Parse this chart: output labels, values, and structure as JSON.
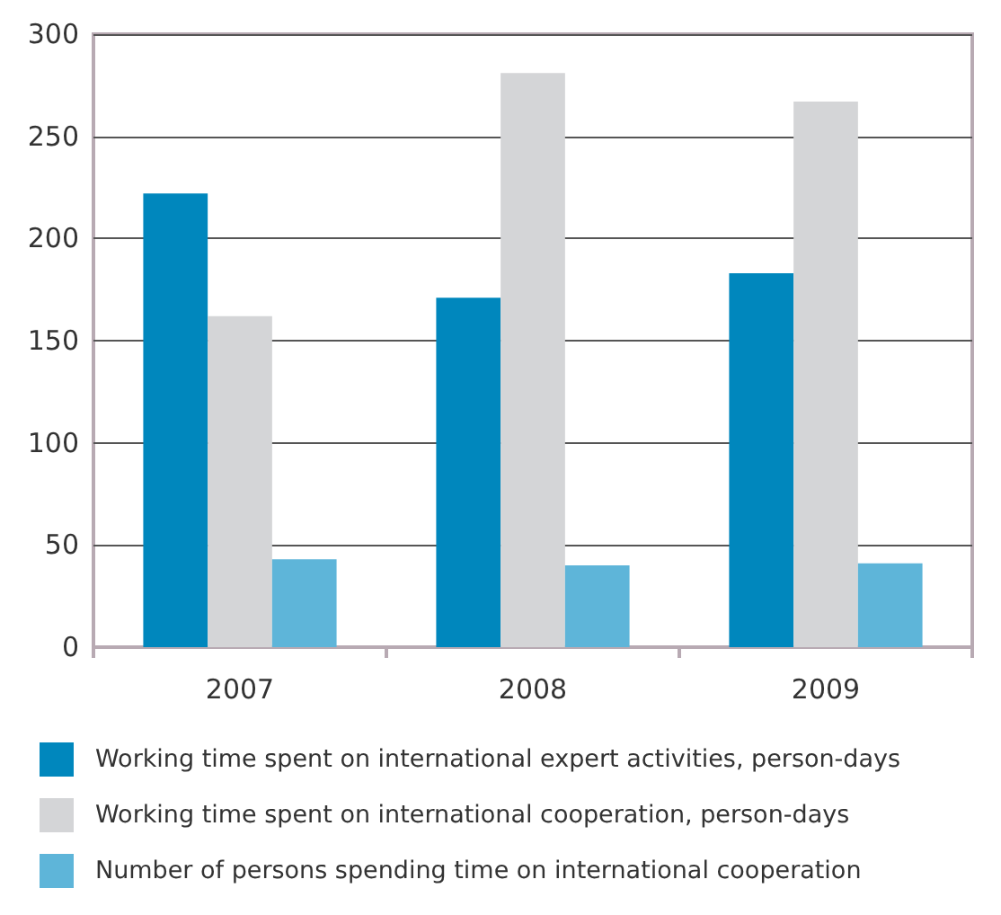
{
  "chart_data": {
    "type": "bar",
    "categories": [
      "2007",
      "2008",
      "2009"
    ],
    "series": [
      {
        "name": "Working time spent on international expert activities, person-days",
        "color": "#0087bd",
        "values": [
          222,
          171,
          183
        ]
      },
      {
        "name": "Working time spent on international cooperation, person-days",
        "color": "#d4d5d7",
        "values": [
          162,
          281,
          267
        ]
      },
      {
        "name": "Number of persons spending time on international cooperation",
        "color": "#5eb5d9",
        "values": [
          43,
          40,
          41
        ]
      }
    ],
    "ylim": [
      0,
      300
    ],
    "yticks": [
      0,
      50,
      100,
      150,
      200,
      250,
      300
    ],
    "grid": "y",
    "legend": "bottom"
  }
}
